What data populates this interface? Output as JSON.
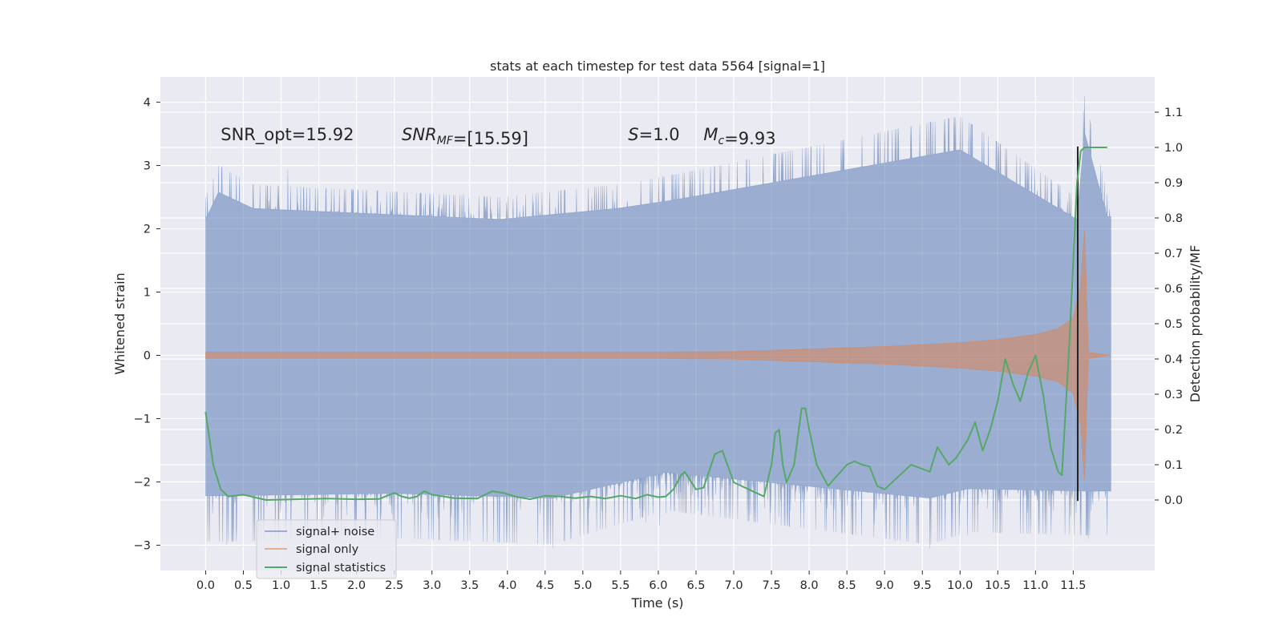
{
  "chart_data": {
    "type": "line",
    "title": "stats at each timestep for test data 5564 [signal=1]",
    "xlabel": "Time (s)",
    "ylabel": "Whitened strain",
    "y2label": "Detection probability/MF",
    "xlim": [
      -0.6,
      12.58
    ],
    "ylim": [
      -3.4,
      4.4
    ],
    "y2lim": [
      -0.2,
      1.2
    ],
    "xticks": [
      0.0,
      0.5,
      1.0,
      1.5,
      2.0,
      2.5,
      3.0,
      3.5,
      4.0,
      4.5,
      5.0,
      5.5,
      6.0,
      6.5,
      7.0,
      7.5,
      8.0,
      8.5,
      9.0,
      9.5,
      10.0,
      10.5,
      11.0,
      11.5
    ],
    "xtick_labels": [
      "0.0",
      "0.5",
      "1.0",
      "1.5",
      "2.0",
      "2.5",
      "3.0",
      "3.5",
      "4.0",
      "4.5",
      "5.0",
      "5.5",
      "6.0",
      "6.5",
      "7.0",
      "7.5",
      "8.0",
      "8.5",
      "9.0",
      "9.5",
      "10.0",
      "10.5",
      "11.0",
      "11.5"
    ],
    "yticks": [
      -3,
      -2,
      -1,
      0,
      1,
      2,
      3,
      4
    ],
    "ytick_labels": [
      "−3",
      "−2",
      "−1",
      "0",
      "1",
      "2",
      "3",
      "4"
    ],
    "y2ticks": [
      0.0,
      0.1,
      0.2,
      0.3,
      0.4,
      0.5,
      0.6,
      0.7,
      0.8,
      0.9,
      1.0,
      1.1
    ],
    "y2tick_labels": [
      "0.0",
      "0.1",
      "0.2",
      "0.3",
      "0.4",
      "0.5",
      "0.6",
      "0.7",
      "0.8",
      "0.9",
      "1.0",
      "1.1"
    ],
    "grid": true,
    "legend_position": "lower-left",
    "annotations": [
      {
        "text": "SNR_opt=15.92",
        "x": 0.2,
        "y": 3.4
      },
      {
        "text": "SNR_MF=[15.59]",
        "x": 2.6,
        "y": 3.4
      },
      {
        "text": "S=1.0",
        "x": 5.6,
        "y": 3.4
      },
      {
        "text": "M_c=9.93",
        "x": 6.6,
        "y": 3.4
      }
    ],
    "series": [
      {
        "name": "signal+ noise",
        "axis": "left",
        "color": "#4c72b0",
        "alpha": 0.5,
        "kind": "noise-band",
        "t_start": 0.0,
        "t_end": 12.0,
        "upper_envelope_peaks": [
          [
            0.0,
            2.5
          ],
          [
            0.17,
            3.0
          ],
          [
            0.63,
            2.7
          ],
          [
            3.9,
            2.5
          ],
          [
            5.45,
            2.7
          ],
          [
            6.18,
            2.85
          ],
          [
            10.0,
            3.78
          ],
          [
            11.55,
            2.5
          ],
          [
            11.65,
            4.1
          ],
          [
            11.95,
            2.55
          ]
        ],
        "lower_envelope_troughs": [
          [
            0.28,
            -3.0
          ],
          [
            2.5,
            -2.95
          ],
          [
            4.6,
            -3.05
          ],
          [
            6.1,
            -2.5
          ],
          [
            9.6,
            -3.05
          ],
          [
            10.1,
            -2.85
          ],
          [
            11.7,
            -2.9
          ]
        ]
      },
      {
        "name": "signal only",
        "axis": "left",
        "color": "#dd8452",
        "kind": "chirp-envelope",
        "t": [
          0.0,
          6.0,
          7.0,
          8.0,
          9.0,
          10.0,
          10.5,
          11.0,
          11.3,
          11.5,
          11.6,
          11.65,
          11.7,
          12.0
        ],
        "amplitude": [
          0.05,
          0.05,
          0.06,
          0.1,
          0.14,
          0.2,
          0.25,
          0.33,
          0.42,
          0.6,
          1.1,
          2.0,
          0.05,
          0.0
        ]
      },
      {
        "name": "signal statistics",
        "axis": "right",
        "color": "#55a868",
        "t": [
          0.0,
          0.1,
          0.2,
          0.3,
          0.5,
          0.8,
          1.2,
          1.6,
          2.0,
          2.3,
          2.5,
          2.6,
          2.7,
          2.8,
          2.9,
          3.0,
          3.3,
          3.6,
          3.8,
          3.95,
          4.1,
          4.3,
          4.5,
          4.7,
          4.9,
          5.1,
          5.3,
          5.5,
          5.7,
          5.85,
          6.0,
          6.1,
          6.2,
          6.3,
          6.35,
          6.5,
          6.6,
          6.75,
          6.85,
          7.0,
          7.3,
          7.4,
          7.5,
          7.55,
          7.6,
          7.65,
          7.7,
          7.8,
          7.9,
          7.95,
          8.0,
          8.1,
          8.25,
          8.5,
          8.6,
          8.7,
          8.8,
          8.9,
          9.0,
          9.2,
          9.35,
          9.6,
          9.7,
          9.85,
          9.95,
          10.1,
          10.2,
          10.3,
          10.4,
          10.5,
          10.6,
          10.7,
          10.8,
          10.9,
          11.0,
          11.1,
          11.2,
          11.3,
          11.35,
          11.45,
          11.55,
          11.6,
          11.65,
          11.8,
          11.95
        ],
        "values": [
          0.25,
          0.1,
          0.03,
          0.01,
          0.015,
          0.0,
          0.002,
          0.004,
          0.002,
          0.003,
          0.02,
          0.01,
          0.005,
          0.01,
          0.025,
          0.015,
          0.005,
          0.004,
          0.025,
          0.02,
          0.01,
          0.002,
          0.012,
          0.01,
          0.005,
          0.01,
          0.004,
          0.012,
          0.004,
          0.015,
          0.008,
          0.01,
          0.03,
          0.07,
          0.08,
          0.03,
          0.035,
          0.13,
          0.14,
          0.05,
          0.02,
          0.01,
          0.1,
          0.19,
          0.2,
          0.1,
          0.05,
          0.1,
          0.26,
          0.26,
          0.2,
          0.1,
          0.04,
          0.1,
          0.11,
          0.1,
          0.095,
          0.04,
          0.03,
          0.07,
          0.1,
          0.08,
          0.15,
          0.1,
          0.12,
          0.17,
          0.22,
          0.14,
          0.2,
          0.28,
          0.4,
          0.33,
          0.28,
          0.36,
          0.41,
          0.3,
          0.15,
          0.08,
          0.07,
          0.45,
          0.9,
          0.99,
          1.0,
          1.0,
          1.0
        ]
      }
    ]
  }
}
